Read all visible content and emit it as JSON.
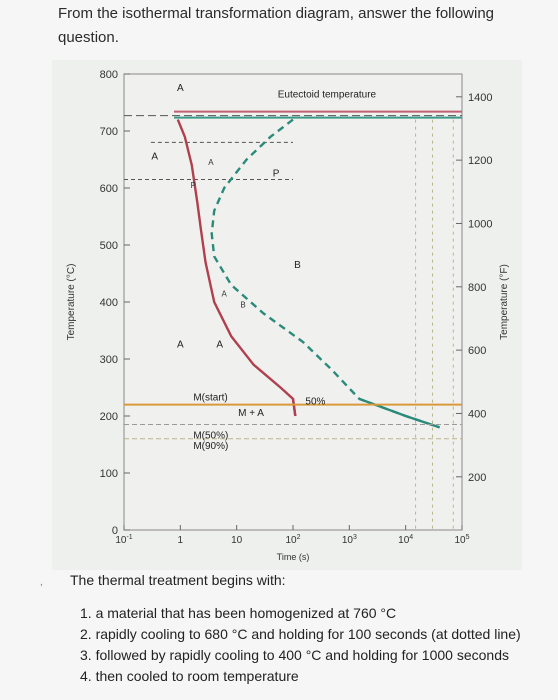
{
  "question": {
    "text": "From the isothermal transformation diagram, answer the following question."
  },
  "chart_data": {
    "type": "line",
    "xlabel": "Time (s)",
    "ylabel": "Temperature (°C)",
    "y2label": "Temperature (°F)",
    "x_scale": "log",
    "xlim": [
      0.1,
      100000
    ],
    "ylim": [
      0,
      800
    ],
    "x_ticks": [
      "10^-1",
      "1",
      "10",
      "10^2",
      "10^3",
      "10^4",
      "10^5"
    ],
    "y_ticks": [
      "0",
      "100",
      "200",
      "300",
      "400",
      "500",
      "600",
      "700",
      "800"
    ],
    "y2_ticks": [
      "200",
      "400",
      "600",
      "800",
      "1000",
      "1200",
      "1400"
    ],
    "eutectoid": {
      "label": "Eutectoid temperature",
      "temp": 727
    },
    "series": [
      {
        "color": "#b0404e",
        "points": [
          [
            0.9,
            720
          ],
          [
            1.2,
            690
          ],
          [
            1.6,
            640
          ],
          [
            2.0,
            575
          ],
          [
            2.3,
            530
          ],
          [
            2.8,
            470
          ],
          [
            4,
            400
          ],
          [
            8,
            340
          ],
          [
            20,
            290
          ],
          [
            60,
            250
          ],
          [
            100,
            230
          ],
          [
            110,
            200
          ]
        ]
      },
      {
        "color": "#2b8a7a",
        "dashed_until": 1000,
        "points": [
          [
            100,
            720
          ],
          [
            40,
            690
          ],
          [
            15,
            650
          ],
          [
            6,
            600
          ],
          [
            4,
            560
          ],
          [
            3.6,
            520
          ],
          [
            4,
            480
          ],
          [
            8,
            430
          ],
          [
            30,
            380
          ],
          [
            150,
            330
          ],
          [
            500,
            280
          ],
          [
            1500,
            230
          ],
          [
            10000,
            200
          ],
          [
            40000,
            180
          ]
        ]
      }
    ],
    "m_lines": [
      {
        "label": "M(start)",
        "temp": 220
      },
      {
        "label": "M(50%)",
        "temp": 185
      },
      {
        "label": "M(90%)",
        "temp": 160
      }
    ],
    "region_labels": [
      "A",
      "A",
      "A",
      "P",
      "B",
      "A",
      "M + A",
      "50%"
    ],
    "curve_marks": [
      "A",
      "P",
      "A",
      "B"
    ]
  },
  "footer": {
    "intro": "The thermal treatment begins with:",
    "steps": [
      "1. a material that has been homogenized at 760 °C",
      "2. rapidly cooling to 680 °C and holding for 100 seconds (at dotted line)",
      "3. followed by rapidly cooling to 400 °C and holding for 1000 seconds",
      "4. then cooled to room temperature"
    ],
    "side_mark": ","
  }
}
